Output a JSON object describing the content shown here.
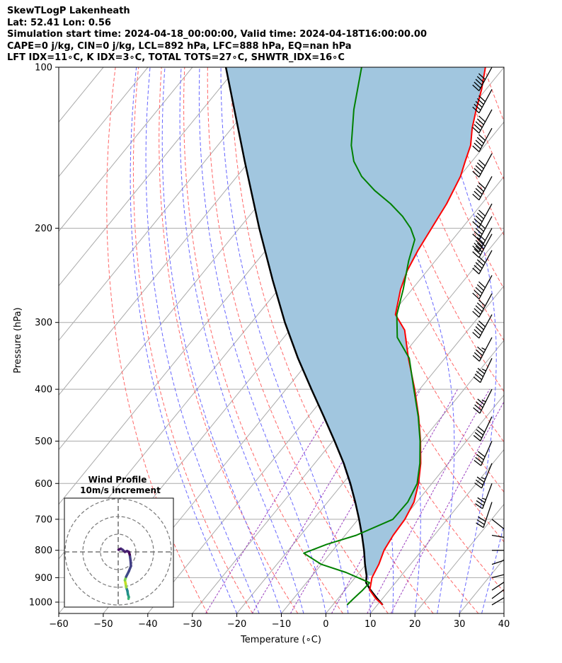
{
  "header": {
    "line1": "SkewTLogP Lakenheath",
    "line2": "Lat: 52.41   Lon: 0.56",
    "line3": "Simulation start time: 2024-04-18_00:00:00, Valid time: 2024-04-18T16:00:00.00",
    "line4": "CAPE=0 j/kg, CIN=0 j/kg, LCL=892 hPa, LFC=888 hPa, EQ=nan hPa",
    "line5": "LFT IDX=11∘C, K IDX=3∘C, TOTAL TOTS=27∘C, SHWTR_IDX=16∘C"
  },
  "chart_data": [
    {
      "type": "line",
      "xlabel": "Temperature (∘C)",
      "ylabel": "Pressure (hPa)",
      "xlim": [
        -60,
        40
      ],
      "ylim": [
        1050,
        100
      ],
      "yscale": "log",
      "skew": true,
      "grid": true,
      "xticks": [
        -60,
        -50,
        -40,
        -30,
        -20,
        -10,
        0,
        10,
        20,
        30,
        40
      ],
      "yticks": [
        100,
        200,
        300,
        400,
        500,
        600,
        700,
        800,
        900,
        1000
      ],
      "colors": {
        "temperature": "#ff0000",
        "dewpoint": "#008000",
        "parcel": "#000000",
        "shade": "#a1c6df",
        "dry_adiabat": "#ff6666",
        "moist_adiabat": "#6666ff",
        "mixing_ratio": "#9b3fbf",
        "isotherm": "#aaaaaa"
      },
      "series": [
        {
          "key": "temperature",
          "p": [
            1012,
            985,
            950,
            900,
            850,
            800,
            750,
            700,
            650,
            600,
            550,
            500,
            450,
            400,
            350,
            310,
            290,
            260,
            240,
            220,
            200,
            180,
            160,
            150,
            140,
            130,
            120,
            110,
            100
          ],
          "t": [
            11.2,
            8.5,
            5.6,
            3.8,
            2.9,
            1.5,
            0.8,
            0.5,
            -0.6,
            -3.0,
            -6.2,
            -10.3,
            -15.2,
            -21.1,
            -28.2,
            -34.2,
            -39.1,
            -42.6,
            -44.5,
            -45.8,
            -46.8,
            -47.9,
            -49.8,
            -51.5,
            -53.2,
            -56.0,
            -58.5,
            -61.0,
            -64.2
          ]
        },
        {
          "key": "dewpoint",
          "p": [
            1012,
            985,
            950,
            920,
            880,
            850,
            810,
            780,
            750,
            700,
            650,
            600,
            550,
            500,
            450,
            400,
            350,
            320,
            290,
            260,
            230,
            210,
            200,
            190,
            180,
            170,
            160,
            150,
            140,
            120,
            100
          ],
          "t": [
            3.2,
            3.5,
            4.0,
            4.2,
            -3.0,
            -10.0,
            -16.0,
            -12.5,
            -7.5,
            -2.2,
            -2.0,
            -3.3,
            -6.4,
            -10.4,
            -15.3,
            -21.3,
            -28.0,
            -34.5,
            -38.8,
            -42.0,
            -46.0,
            -48.5,
            -51.5,
            -55.5,
            -60.5,
            -66.5,
            -72.0,
            -76.5,
            -80.0,
            -86.0,
            -92.0
          ]
        },
        {
          "key": "parcel",
          "p": [
            1012,
            985,
            950,
            920,
            892,
            850,
            800,
            750,
            700,
            650,
            600,
            550,
            500,
            450,
            400,
            350,
            300,
            250,
            200,
            150,
            100
          ],
          "t": [
            11.2,
            8.8,
            5.8,
            3.4,
            2.2,
            -0.2,
            -3.0,
            -6.2,
            -9.8,
            -13.8,
            -18.3,
            -23.5,
            -29.6,
            -36.5,
            -44.3,
            -53.0,
            -62.5,
            -73.0,
            -85.5,
            -101.0,
            -122.5
          ]
        }
      ]
    },
    {
      "type": "line",
      "title": "Wind Profile",
      "subtitle": "10m/s increment",
      "rings": [
        10,
        20,
        30
      ],
      "u": [
        5.8,
        6.0,
        5.5,
        5.2,
        4.5,
        4.2,
        3.8,
        4.5,
        6.0,
        7.2,
        7.0,
        6.5,
        6.0,
        5.0,
        3.8,
        2.5,
        1.5,
        0.8,
        0.2
      ],
      "v": [
        -26.5,
        -25.5,
        -24.0,
        -22.0,
        -20.0,
        -18.0,
        -16.0,
        -14.0,
        -11.0,
        -8.0,
        -5.0,
        -1.5,
        0.0,
        0.5,
        0.0,
        1.2,
        1.8,
        1.5,
        1.2
      ]
    }
  ],
  "barbs": {
    "p": [
      1012,
      985,
      950,
      900,
      850,
      800,
      750,
      700,
      650,
      600,
      550,
      500,
      450,
      400,
      350,
      320,
      290,
      265,
      245,
      220,
      205,
      200,
      190,
      180,
      160,
      145,
      130,
      120,
      110,
      100
    ],
    "u": [
      -5,
      -4,
      -3,
      -4,
      -6,
      -6,
      -6,
      -5,
      5,
      6,
      7,
      8,
      9,
      10,
      10,
      11,
      12,
      12,
      12,
      12,
      12,
      12,
      12,
      12,
      12,
      12,
      12,
      12,
      12,
      12
    ],
    "v": [
      -3,
      -3,
      -2,
      -1,
      -2,
      0,
      1,
      4,
      15,
      16,
      17,
      18,
      19,
      20,
      21,
      21,
      22,
      22,
      22,
      22,
      22,
      22,
      22,
      22,
      22,
      22,
      22,
      22,
      22,
      22
    ]
  }
}
